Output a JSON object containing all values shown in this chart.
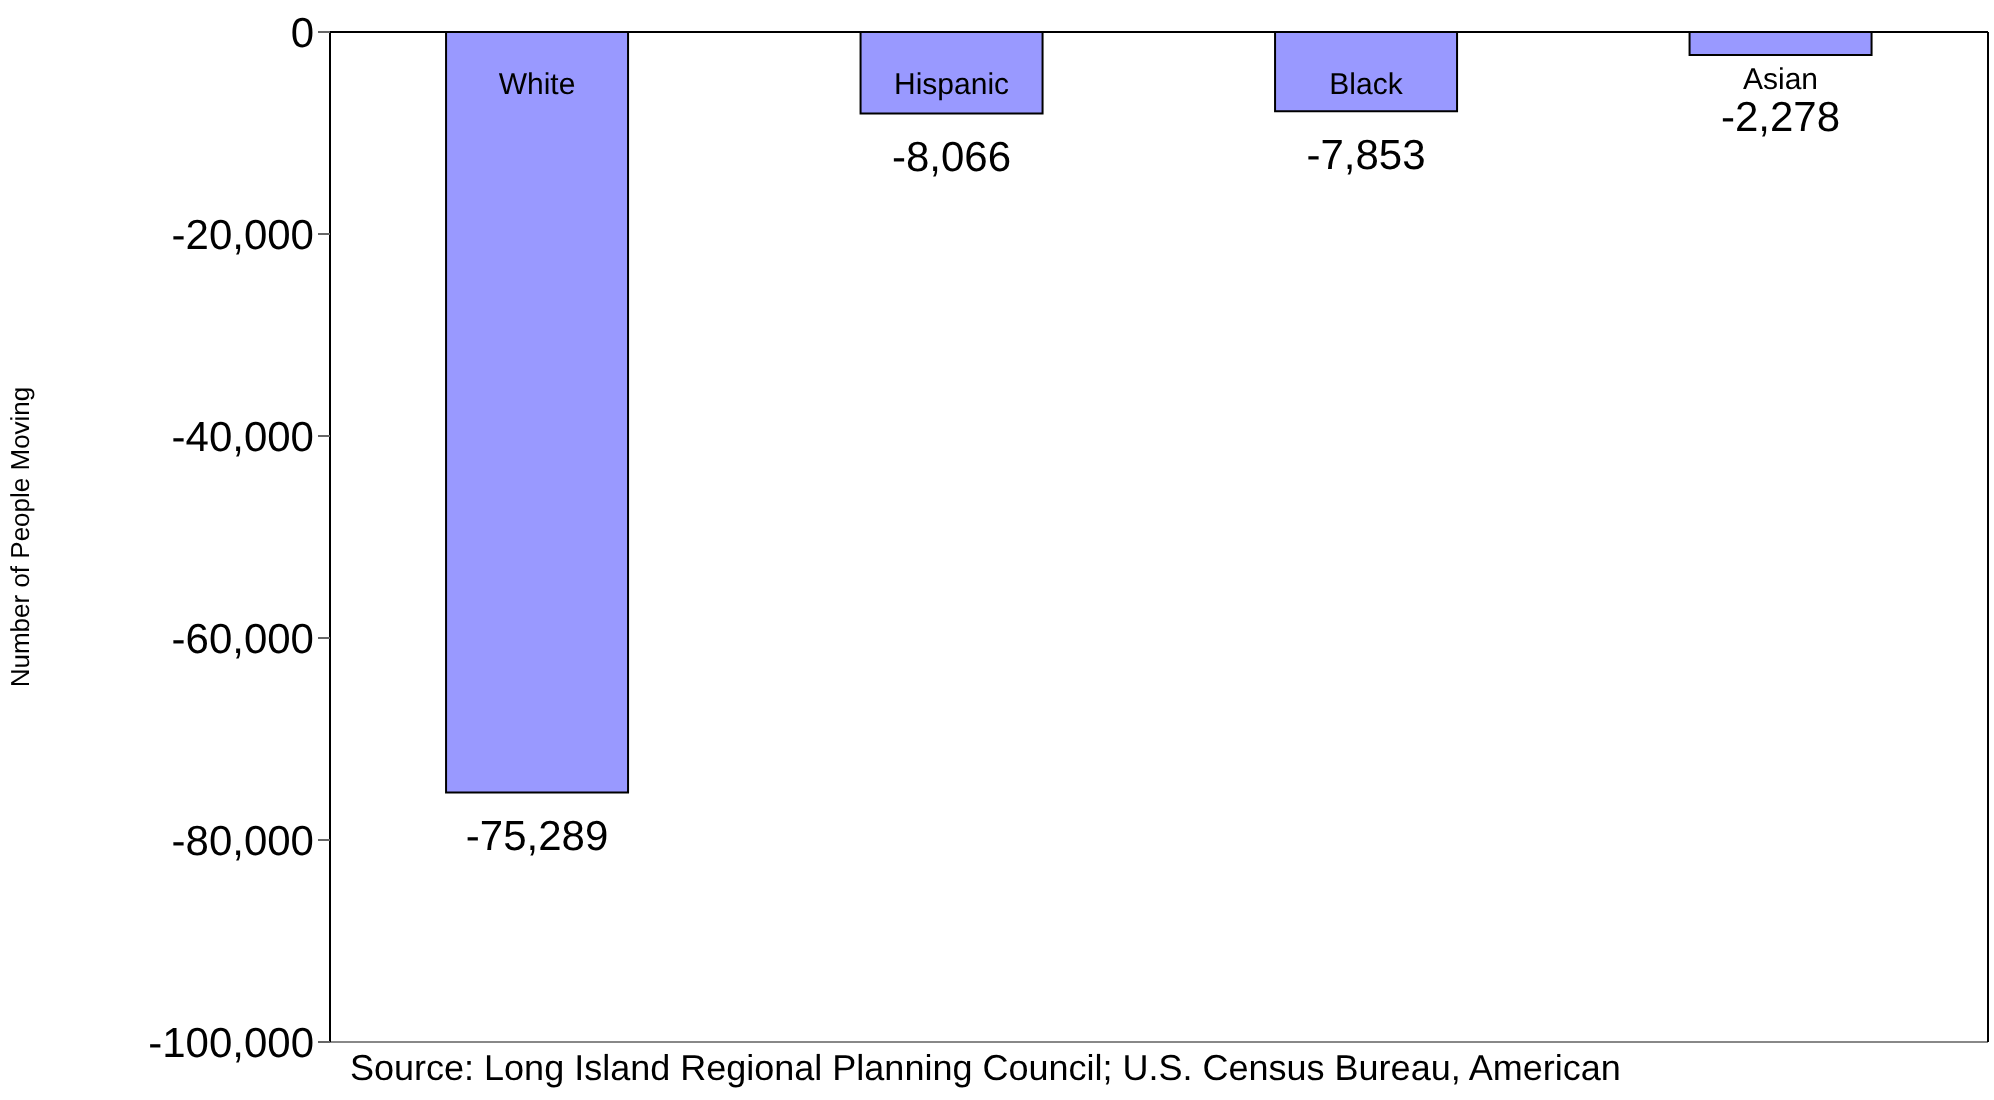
{
  "chart_data": {
    "type": "bar",
    "ylabel": "Number of People Moving",
    "categories": [
      "White",
      "Hispanic",
      "Black",
      "Asian"
    ],
    "values": [
      -75289,
      -8066,
      -7853,
      -2278
    ],
    "color": "#9999ff",
    "value_labels": [
      "-75,289",
      "-8,066",
      "-7,853",
      "-2,278"
    ],
    "ylim": [
      -100000,
      0
    ],
    "yticks": [
      {
        "value": -100000,
        "label": "-100,000"
      },
      {
        "value": -80000,
        "label": "-80,000"
      },
      {
        "value": -60000,
        "label": "-60,000"
      },
      {
        "value": -40000,
        "label": "-40,000"
      },
      {
        "value": -20000,
        "label": "-20,000"
      },
      0
    ],
    "annotations": [
      "Source: Long Island Regional Planning Council; U.S. Census Bureau, American"
    ]
  }
}
